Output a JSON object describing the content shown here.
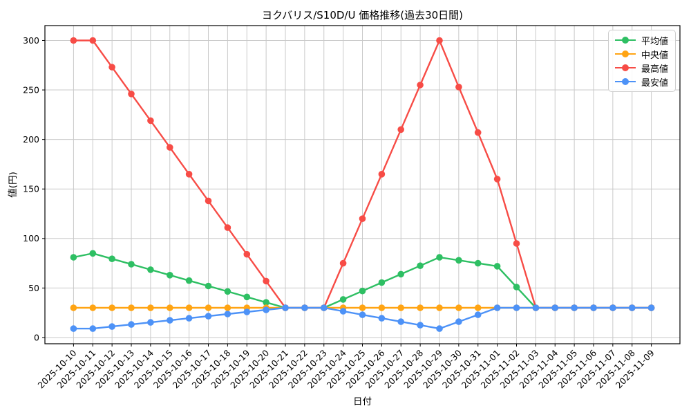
{
  "chart_data": {
    "type": "line",
    "title": "ヨクバリス/S10D/U 価格推移(過去30日間)",
    "xlabel": "日付",
    "ylabel": "値(円)",
    "x": [
      "2025-10-10",
      "2025-10-11",
      "2025-10-12",
      "2025-10-13",
      "2025-10-14",
      "2025-10-15",
      "2025-10-16",
      "2025-10-17",
      "2025-10-18",
      "2025-10-19",
      "2025-10-20",
      "2025-10-21",
      "2025-10-22",
      "2025-10-23",
      "2025-10-24",
      "2025-10-25",
      "2025-10-26",
      "2025-10-27",
      "2025-10-28",
      "2025-10-29",
      "2025-10-30",
      "2025-10-31",
      "2025-11-01",
      "2025-11-02",
      "2025-11-03",
      "2025-11-04",
      "2025-11-05",
      "2025-11-06",
      "2025-11-07",
      "2025-11-08",
      "2025-11-09"
    ],
    "series": [
      {
        "name": "平均値",
        "color": "#2ebf63",
        "values": [
          81,
          85,
          79.5,
          74,
          68.5,
          63,
          57.5,
          52,
          46.5,
          41,
          35.5,
          30,
          30,
          30,
          38.5,
          47,
          55.5,
          64,
          72.5,
          81,
          78,
          75,
          72,
          51,
          30,
          30,
          30,
          30,
          30,
          30,
          30
        ]
      },
      {
        "name": "中央値",
        "color": "#ffa413",
        "values": [
          30,
          30,
          30,
          30,
          30,
          30,
          30,
          30,
          30,
          30,
          30,
          30,
          30,
          30,
          30,
          30,
          30,
          30,
          30,
          30,
          30,
          30,
          30,
          30,
          30,
          30,
          30,
          30,
          30,
          30,
          30
        ]
      },
      {
        "name": "最高値",
        "color": "#f74c46",
        "values": [
          300,
          300,
          273,
          246,
          219,
          192,
          165,
          138,
          111,
          84,
          57,
          30,
          30,
          30,
          75,
          120,
          165,
          210,
          255,
          300,
          253,
          207,
          160,
          95,
          30,
          30,
          30,
          30,
          30,
          30,
          30
        ]
      },
      {
        "name": "最安値",
        "color": "#4d92f7",
        "values": [
          9,
          9,
          11.1,
          13.2,
          15.3,
          17.4,
          19.5,
          21.6,
          23.7,
          25.8,
          27.9,
          30,
          30,
          30,
          26.5,
          23,
          19.5,
          16,
          12.5,
          9,
          16,
          23,
          30,
          30,
          30,
          30,
          30,
          30,
          30,
          30,
          30
        ]
      }
    ],
    "yticks": [
      0,
      50,
      100,
      150,
      200,
      250,
      300
    ],
    "ylim": [
      -6.3,
      315
    ],
    "grid": true,
    "legend_position": "upper right",
    "colors": {
      "grid": "#c9c9c9",
      "spine": "#000000",
      "text": "#000000",
      "background": "#ffffff"
    }
  }
}
